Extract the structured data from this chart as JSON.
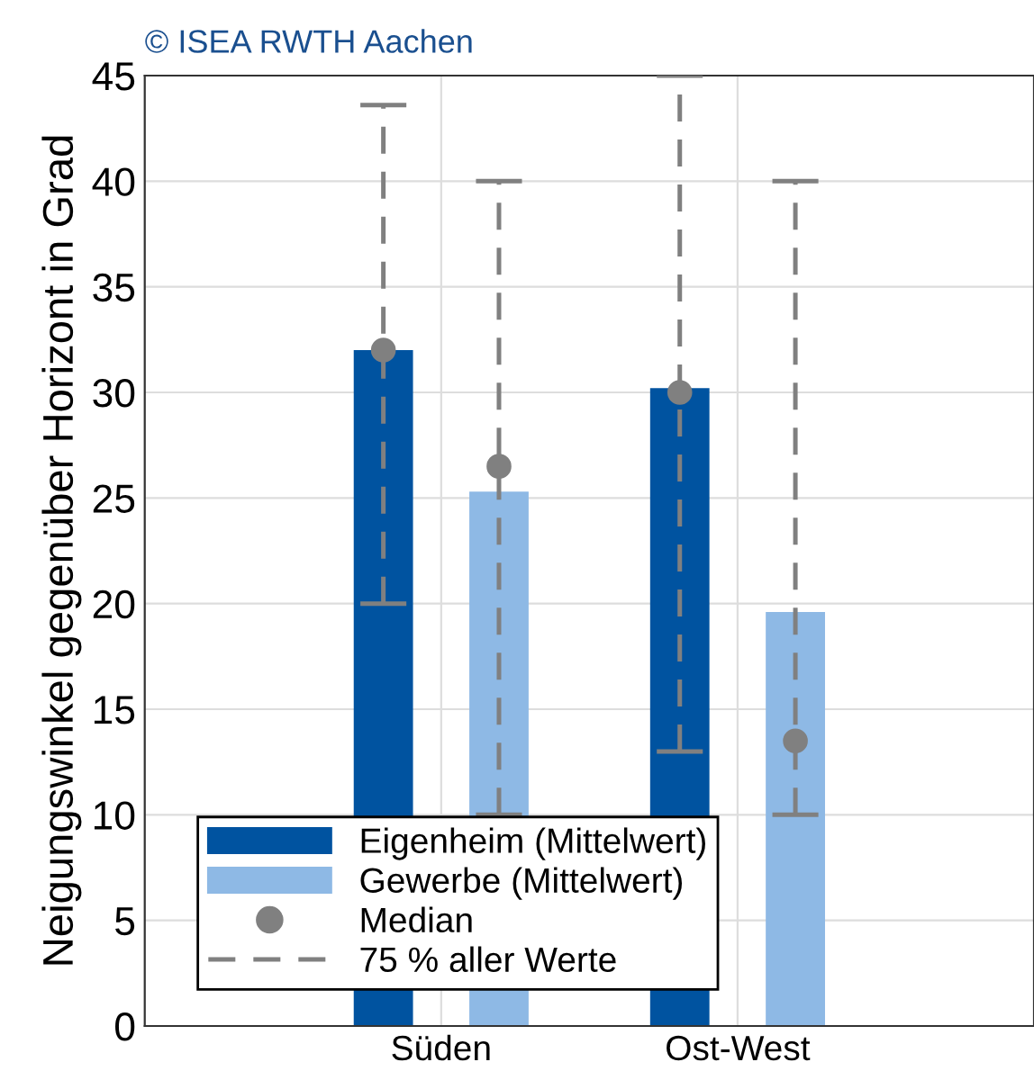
{
  "chart_data": {
    "type": "bar",
    "ylabel": "Neigungswinkel gegenüber Horizont in Grad",
    "categories": [
      "Süden",
      "Ost-West"
    ],
    "series": [
      {
        "name": "Eigenheim (Mittelwert)",
        "color": "#0053a0",
        "values": [
          32,
          30.2
        ],
        "errors": [
          [
            20,
            43.6
          ],
          [
            13,
            45
          ]
        ]
      },
      {
        "name": "Gewerbe (Mittelwert)",
        "color": "#8eb9e5",
        "values": [
          25.3,
          19.6
        ],
        "errors": [
          [
            10,
            40
          ],
          [
            10,
            40
          ]
        ]
      },
      {
        "name": "Median",
        "type": "scatter",
        "color": "#808080",
        "values": [
          32,
          30
        ]
      },
      {
        "type": "scatter",
        "color": "#808080",
        "values": [
          26.5,
          13.5
        ]
      }
    ],
    "annotations": [
      "© ISEA RWTH Aachen",
      "75 % aller Werte"
    ],
    "ylim": [
      0,
      45
    ],
    "yticks": [
      0,
      5,
      10,
      15,
      20,
      25,
      30,
      35,
      40,
      45
    ],
    "grid": true,
    "legend": "bottom left",
    "marker": "circle",
    "line_style": "dashed"
  }
}
